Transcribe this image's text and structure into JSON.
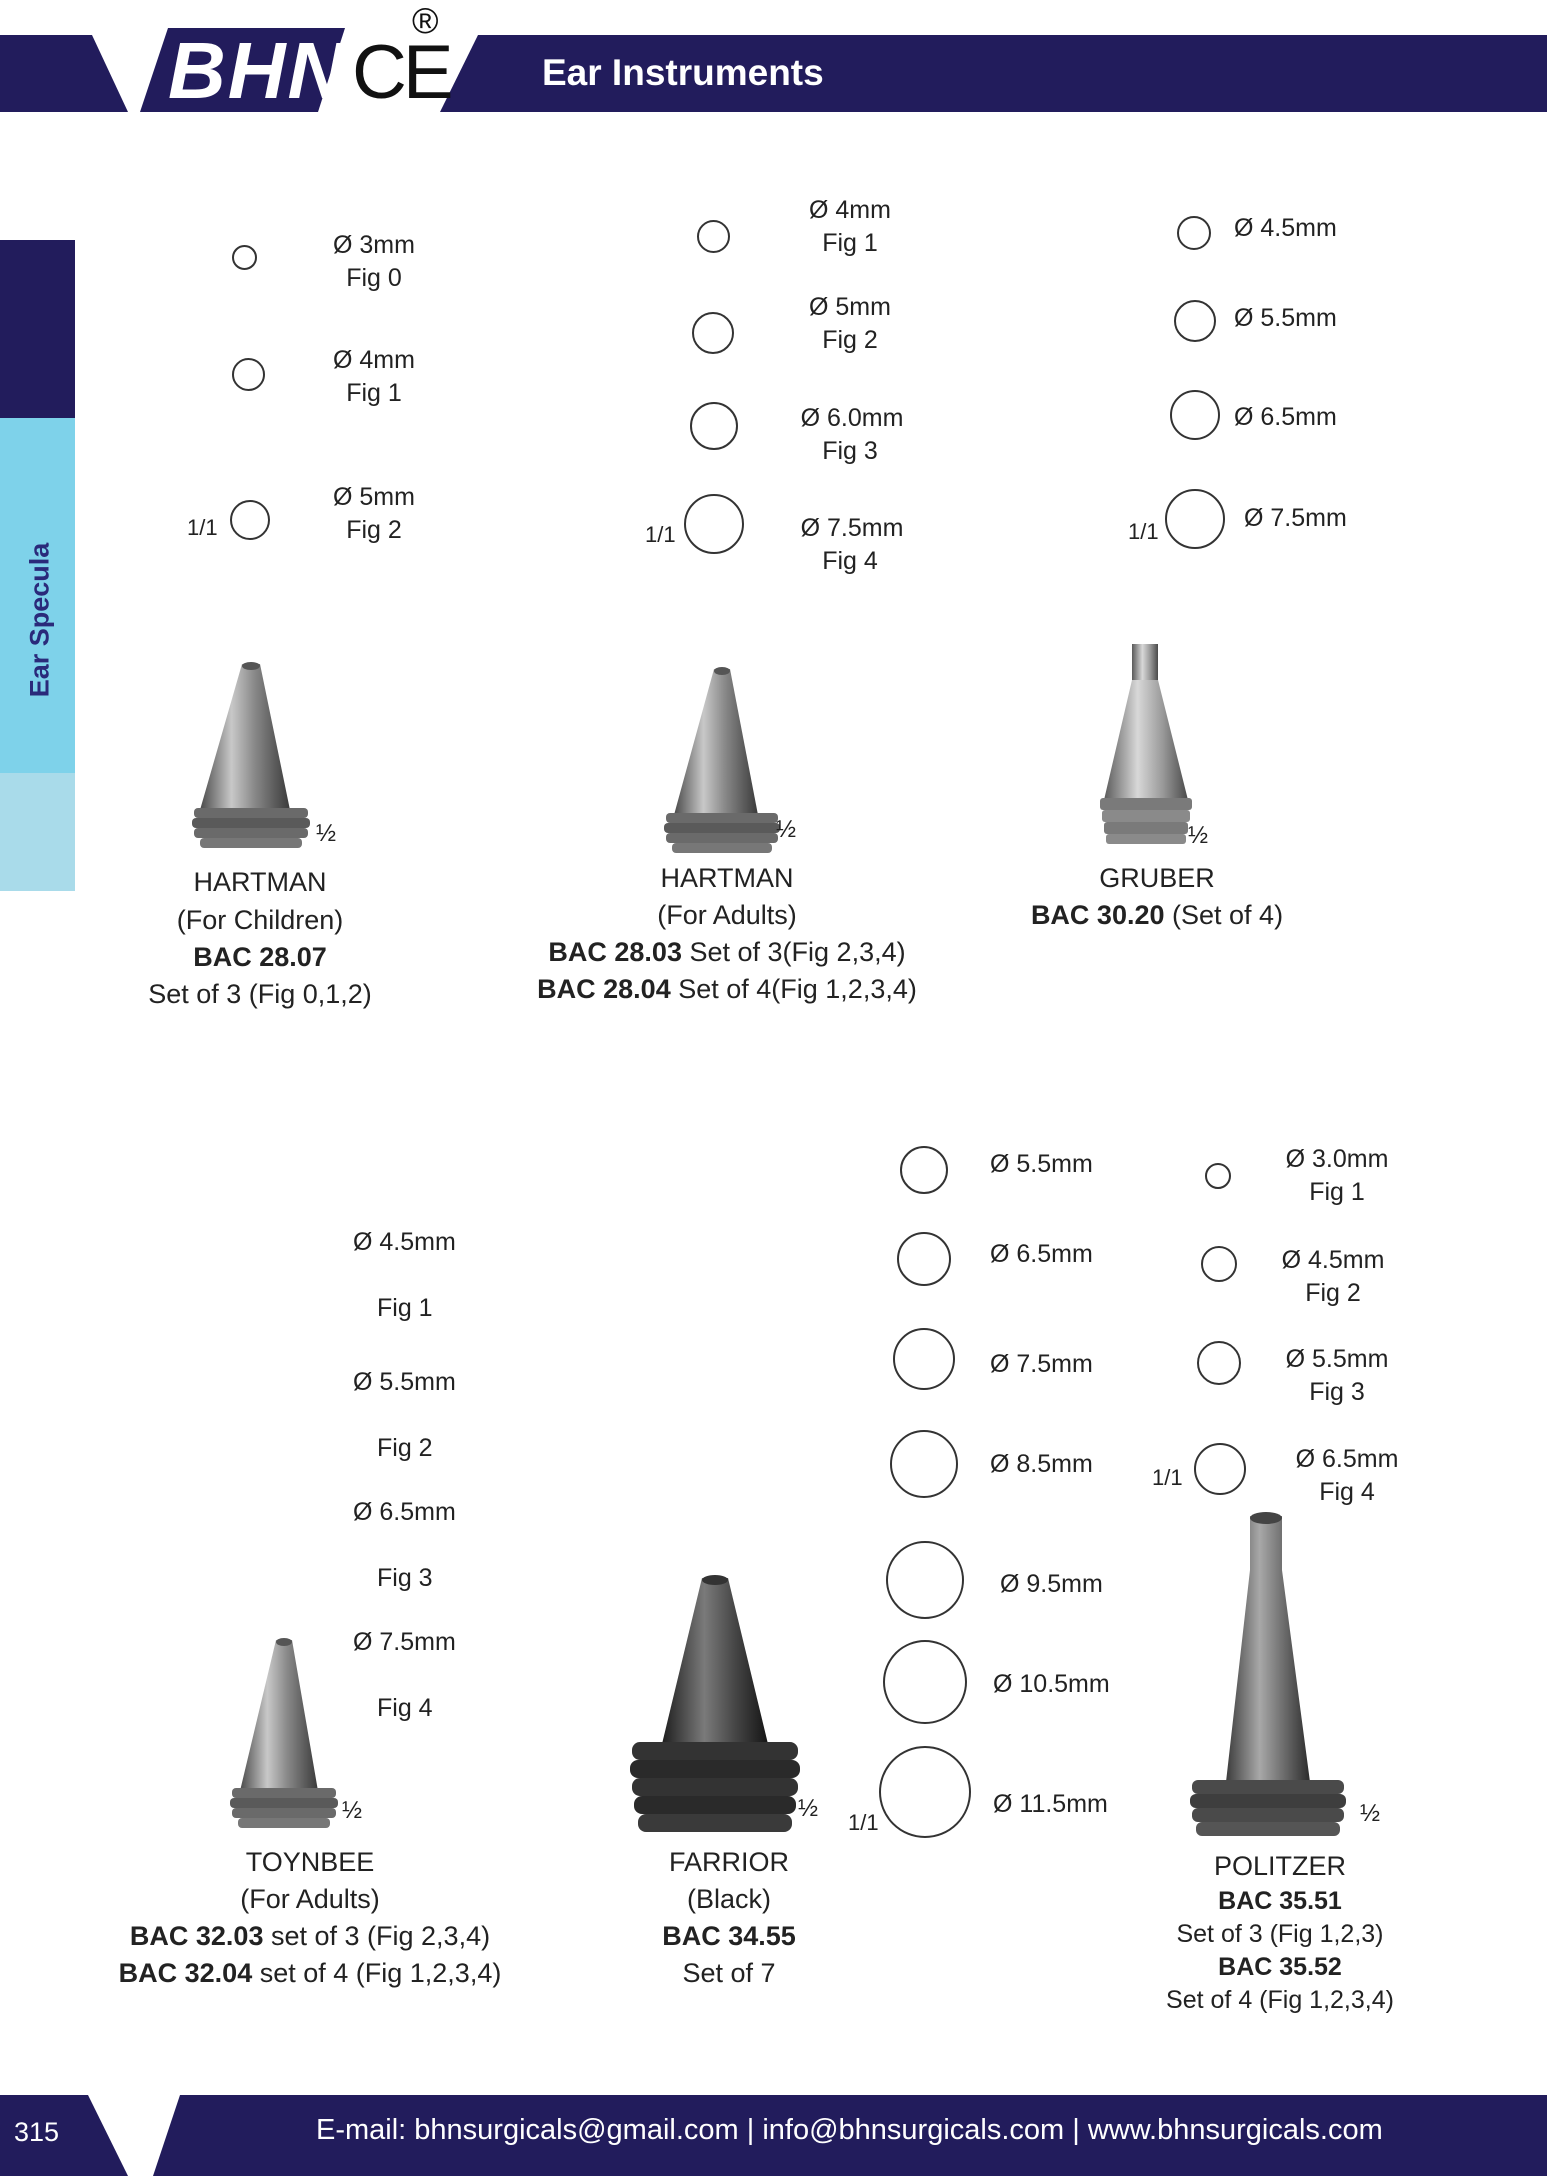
{
  "header": {
    "brand_text": "BHN",
    "ce_mark": "CE",
    "registered_mark": "®",
    "title": "Ear Instruments"
  },
  "sidebar": {
    "section_label": "Ear Specula"
  },
  "colors": {
    "navy": "#221c5c",
    "sidebar_dark": "#221c5c",
    "sidebar_light": "#7ed2ea",
    "sidebar_pale": "#a9dbea",
    "metal": "#8a8a8a"
  },
  "products": {
    "hartman_children": {
      "sizes": [
        {
          "dia": "Ø 3mm",
          "fig": "Fig 0"
        },
        {
          "dia": "Ø 4mm",
          "fig": "Fig 1"
        },
        {
          "dia": "Ø 5mm",
          "fig": "Fig 2"
        }
      ],
      "scale": "1/1",
      "half": "½",
      "name": "HARTMAN",
      "sub": "(For Children)",
      "code": "BAC 28.07",
      "set": "Set of 3 (Fig 0,1,2)"
    },
    "hartman_adults": {
      "sizes": [
        {
          "dia": "Ø 4mm",
          "fig": "Fig 1"
        },
        {
          "dia": "Ø 5mm",
          "fig": "Fig 2"
        },
        {
          "dia": "Ø 6.0mm",
          "fig": "Fig 3"
        },
        {
          "dia": "Ø 7.5mm",
          "fig": "Fig 4"
        }
      ],
      "scale": "1/1",
      "half": "½",
      "name": "HARTMAN",
      "sub": "(For Adults)",
      "code1": "BAC 28.03",
      "set1": " Set of 3(Fig 2,3,4)",
      "code2": "BAC 28.04",
      "set2": " Set of 4(Fig 1,2,3,4)"
    },
    "gruber": {
      "sizes": [
        "Ø 4.5mm",
        "Ø 5.5mm",
        "Ø 6.5mm",
        "Ø 7.5mm"
      ],
      "scale": "1/1",
      "half": "½",
      "name": "GRUBER",
      "code": "BAC 30.20",
      "set": " (Set of 4)"
    },
    "toynbee": {
      "labels": [
        "Ø 4.5mm",
        "Fig 1",
        "Ø 5.5mm",
        "Fig 2",
        "Ø 6.5mm",
        "Fig 3",
        "Ø 7.5mm",
        "Fig 4"
      ],
      "half": "½",
      "name": "TOYNBEE",
      "sub": "(For Adults)",
      "code1": "BAC 32.03",
      "set1": " set of 3 (Fig 2,3,4)",
      "code2": "BAC 32.04",
      "set2": " set of 4 (Fig 1,2,3,4)"
    },
    "farrior": {
      "sizes": [
        "Ø 5.5mm",
        "Ø 6.5mm",
        "Ø 7.5mm",
        "Ø 8.5mm",
        "Ø 9.5mm",
        "Ø 10.5mm",
        "Ø 11.5mm"
      ],
      "scale": "1/1",
      "half": "½",
      "name": "FARRIOR",
      "sub": "(Black)",
      "code": "BAC 34.55",
      "set": "Set of 7"
    },
    "politzer": {
      "sizes": [
        {
          "dia": "Ø 3.0mm",
          "fig": "Fig 1"
        },
        {
          "dia": "Ø 4.5mm",
          "fig": "Fig 2"
        },
        {
          "dia": "Ø 5.5mm",
          "fig": "Fig 3"
        },
        {
          "dia": "Ø 6.5mm",
          "fig": "Fig 4"
        }
      ],
      "scale": "1/1",
      "half": "½",
      "name": "POLITZER",
      "code1": "BAC 35.51",
      "set1": "Set of 3 (Fig 1,2,3)",
      "code2": "BAC 35.52",
      "set2": "Set of 4 (Fig 1,2,3,4)"
    }
  },
  "footer": {
    "page_number": "315",
    "contact": "E-mail: bhnsurgicals@gmail.com   |   info@bhnsurgicals.com  |   www.bhnsurgicals.com"
  }
}
